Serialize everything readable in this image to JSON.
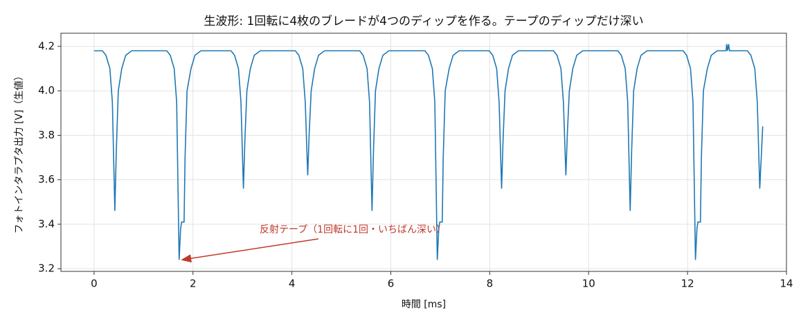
{
  "chart_data": {
    "type": "line",
    "title": "生波形: 1回転に4枚のブレードが4つのディップを作る。テープのディップだけ深い",
    "x_label": "時間 [ms]",
    "y_label": "フォトインタラプタ出力 [V]（生値）",
    "annotation": "反射テープ（1回転に1回・いちばん深い）",
    "annotation_color": "#c0392b",
    "grid": true,
    "xlim": [
      -0.67,
      14.0
    ],
    "ylim": [
      3.188,
      4.259
    ],
    "xticks": [
      0,
      2,
      4,
      6,
      8,
      10,
      12,
      14
    ],
    "yticks": [
      3.2,
      3.4,
      3.6,
      3.8,
      {
        "value": 4,
        "label": "4.0"
      },
      4.2
    ],
    "x": [
      0,
      0.17,
      0.24,
      0.32,
      0.37,
      0.42,
      0.45,
      0.49,
      0.56,
      0.64,
      0.76,
      1.47,
      1.54,
      1.62,
      1.67,
      1.72,
      1.75,
      1.77,
      1.82,
      1.84,
      1.88,
      1.96,
      2.04,
      2.16,
      2.77,
      2.84,
      2.92,
      2.97,
      3.02,
      3.05,
      3.09,
      3.16,
      3.24,
      3.36,
      4.07,
      4.14,
      4.22,
      4.27,
      4.32,
      4.35,
      4.39,
      4.46,
      4.54,
      4.66,
      5.37,
      5.44,
      5.52,
      5.57,
      5.62,
      5.65,
      5.69,
      5.76,
      5.84,
      5.96,
      6.69,
      6.76,
      6.84,
      6.89,
      6.94,
      6.97,
      6.99,
      7.04,
      7.06,
      7.1,
      7.18,
      7.26,
      7.38,
      7.99,
      8.06,
      8.14,
      8.19,
      8.24,
      8.27,
      8.31,
      8.38,
      8.46,
      8.58,
      9.29,
      9.36,
      9.44,
      9.49,
      9.54,
      9.57,
      9.61,
      9.68,
      9.76,
      9.88,
      10.59,
      10.66,
      10.74,
      10.79,
      10.84,
      10.87,
      10.91,
      10.98,
      11.06,
      11.18,
      11.91,
      11.98,
      12.06,
      12.11,
      12.16,
      12.19,
      12.21,
      12.26,
      12.28,
      12.32,
      12.4,
      12.48,
      12.6,
      12.78,
      12.79,
      12.81,
      12.83,
      12.85,
      13.21,
      13.28,
      13.36,
      13.41,
      13.46,
      13.49,
      13.52
    ],
    "series": [
      {
        "color": "#1f77b4",
        "values": [
          4.18,
          4.18,
          4.16,
          4.1,
          3.95,
          3.46,
          3.73,
          4.0,
          4.1,
          4.16,
          4.18,
          4.18,
          4.16,
          4.1,
          3.95,
          3.24,
          3.38,
          3.41,
          3.41,
          3.7,
          4.0,
          4.1,
          4.16,
          4.18,
          4.18,
          4.16,
          4.1,
          3.95,
          3.56,
          3.78,
          4.0,
          4.1,
          4.16,
          4.18,
          4.18,
          4.16,
          4.1,
          3.95,
          3.62,
          3.81,
          4.0,
          4.1,
          4.16,
          4.18,
          4.18,
          4.16,
          4.1,
          3.95,
          3.46,
          3.73,
          4.0,
          4.1,
          4.16,
          4.18,
          4.18,
          4.16,
          4.1,
          3.95,
          3.24,
          3.38,
          3.41,
          3.41,
          3.7,
          4.0,
          4.1,
          4.16,
          4.18,
          4.18,
          4.16,
          4.1,
          3.95,
          3.56,
          3.78,
          4.0,
          4.1,
          4.16,
          4.18,
          4.18,
          4.16,
          4.1,
          3.95,
          3.62,
          3.81,
          4.0,
          4.1,
          4.16,
          4.18,
          4.18,
          4.16,
          4.1,
          3.95,
          3.46,
          3.73,
          4.0,
          4.1,
          4.16,
          4.18,
          4.18,
          4.16,
          4.1,
          3.95,
          3.24,
          3.38,
          3.41,
          3.41,
          3.7,
          4.0,
          4.1,
          4.16,
          4.18,
          4.18,
          4.21,
          4.18,
          4.21,
          4.18,
          4.18,
          4.16,
          4.1,
          3.95,
          3.56,
          3.7,
          3.84
        ]
      }
    ]
  }
}
